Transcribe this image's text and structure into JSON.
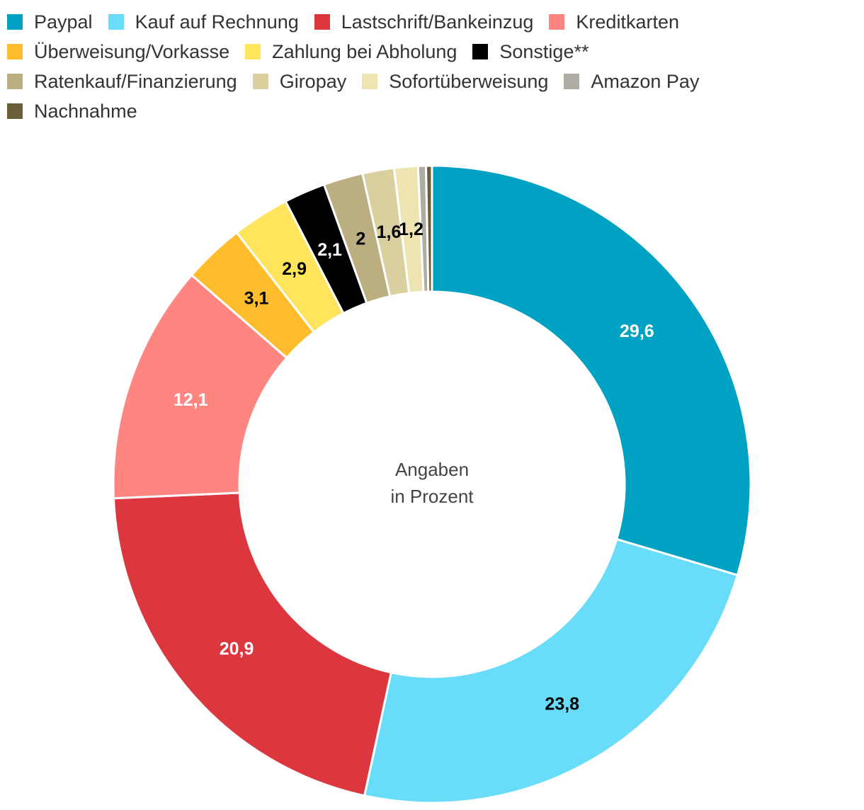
{
  "chart_data": {
    "type": "pie",
    "variant": "donut",
    "center_label": [
      "Angaben",
      "in Prozent"
    ],
    "series": [
      {
        "name": "Paypal",
        "value": 29.6,
        "label": "29,6",
        "color": "#00A2C3",
        "label_color": "#ffffff"
      },
      {
        "name": "Kauf auf Rechnung",
        "value": 23.8,
        "label": "23,8",
        "color": "#68DCF8",
        "label_color": "#000000"
      },
      {
        "name": "Lastschrift/Bankeinzug",
        "value": 20.9,
        "label": "20,9",
        "color": "#DC363E",
        "label_color": "#ffffff"
      },
      {
        "name": "Kreditkarten",
        "value": 12.1,
        "label": "12,1",
        "color": "#FF8580",
        "label_color": "#ffffff"
      },
      {
        "name": "Überweisung/Vorkasse",
        "value": 3.1,
        "label": "3,1",
        "color": "#FFBD2E",
        "label_color": "#000000"
      },
      {
        "name": "Zahlung bei Abholung",
        "value": 2.9,
        "label": "2,9",
        "color": "#FFE45C",
        "label_color": "#000000"
      },
      {
        "name": "Sonstige**",
        "value": 2.1,
        "label": "2,1",
        "color": "#000000",
        "label_color": "#ffffff"
      },
      {
        "name": "Ratenkauf/Finanzierung",
        "value": 2.0,
        "label": "2",
        "color": "#BBAE80",
        "label_color": "#000000"
      },
      {
        "name": "Giropay",
        "value": 1.6,
        "label": "1,6",
        "color": "#DACF9F",
        "label_color": "#000000"
      },
      {
        "name": "Sofortüberweisung",
        "value": 1.2,
        "label": "1,2",
        "color": "#EEE4B2",
        "label_color": "#000000"
      },
      {
        "name": "Amazon Pay",
        "value": 0.4,
        "label": "",
        "color": "#AEACA3",
        "label_color": "#000000"
      },
      {
        "name": "Nachnahme",
        "value": 0.3,
        "label": "",
        "color": "#6A5E38",
        "label_color": "#000000"
      }
    ]
  }
}
